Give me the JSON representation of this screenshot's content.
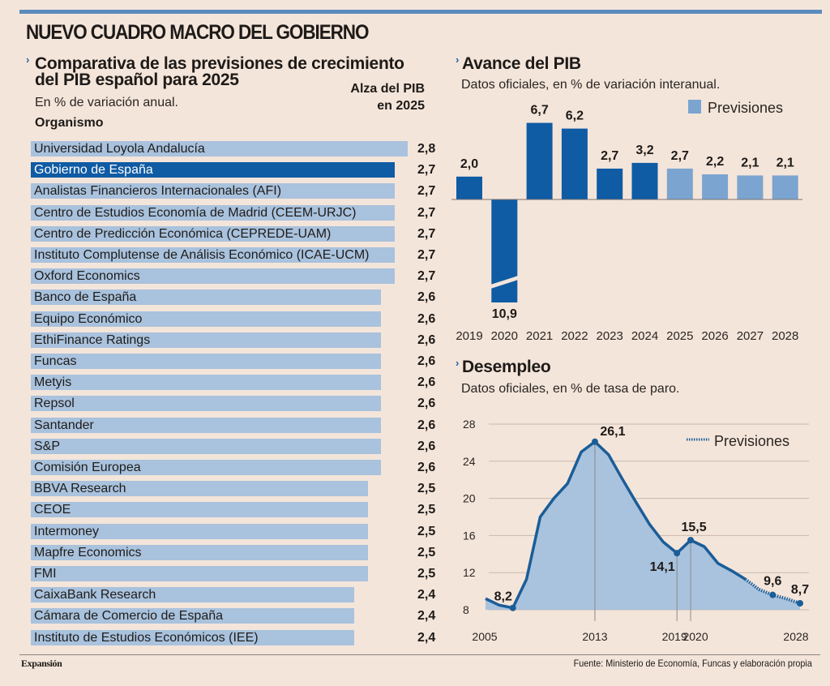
{
  "header": {
    "title": "NUEVO CUADRO MACRO DEL GOBIERNO"
  },
  "colors": {
    "accent": "#5b8bbd",
    "official_bar": "#0f5ba4",
    "forecast_bar": "#7ba4d1",
    "list_bar": "#a9c2dd",
    "area_fill": "#a9c2dd",
    "line": "#1a5d98",
    "background": "#f4e5da"
  },
  "left": {
    "title_line1": "Comparativa de las previsiones de crecimiento",
    "title_line2": "del PIB español para 2025",
    "subtitle": "En % de variación anual.",
    "col_org": "Organismo",
    "col_val_line1": "Alza del PIB",
    "col_val_line2": "en 2025"
  },
  "pib": {
    "title": "Avance del PIB",
    "subtitle": "Datos oficiales, en % de variación interanual.",
    "legend": "Previsiones"
  },
  "paro": {
    "title": "Desempleo",
    "subtitle": "Datos oficiales, en % de tasa de paro.",
    "legend": "Previsiones"
  },
  "footer": {
    "brand": "Expansión",
    "source": "Fuente:  Ministerio de Economía, Funcas y elaboración propia"
  },
  "chart_data": [
    {
      "type": "bar",
      "orientation": "horizontal",
      "title": "Comparativa de las previsiones de crecimiento del PIB español para 2025",
      "subtitle": "En % de variación anual.",
      "xlabel": "Alza del PIB en 2025",
      "ylabel": "Organismo",
      "highlight": "Gobierno de España",
      "categories": [
        "Universidad Loyola Andalucía",
        "Gobierno de España",
        "Analistas Financieros Internacionales (AFI)",
        "Centro de Estudios Economía de Madrid (CEEM-URJC)",
        "Centro de Predicción Económica (CEPREDE-UAM)",
        "Instituto Complutense de Análisis Económico (ICAE-UCM)",
        "Oxford Economics",
        "Banco de España",
        "Equipo Económico",
        "EthiFinance Ratings",
        "Funcas",
        "Metyis",
        "Repsol",
        "Santander",
        "S&P",
        "Comisión Europea",
        "BBVA Research",
        "CEOE",
        "Intermoney",
        "Mapfre Economics",
        "FMI",
        "CaixaBank Research",
        "Cámara de Comercio de España",
        "Instituto de Estudios Económicos (IEE)"
      ],
      "values": [
        2.8,
        2.7,
        2.7,
        2.7,
        2.7,
        2.7,
        2.7,
        2.6,
        2.6,
        2.6,
        2.6,
        2.6,
        2.6,
        2.6,
        2.6,
        2.6,
        2.5,
        2.5,
        2.5,
        2.5,
        2.5,
        2.4,
        2.4,
        2.4
      ],
      "value_labels": [
        "2,8",
        "2,7",
        "2,7",
        "2,7",
        "2,7",
        "2,7",
        "2,7",
        "2,6",
        "2,6",
        "2,6",
        "2,6",
        "2,6",
        "2,6",
        "2,6",
        "2,6",
        "2,6",
        "2,5",
        "2,5",
        "2,5",
        "2,5",
        "2,5",
        "2,4",
        "2,4",
        "2,4"
      ]
    },
    {
      "type": "bar",
      "title": "Avance del PIB",
      "subtitle": "Datos oficiales, en % de variación interanual.",
      "categories": [
        "2019",
        "2020",
        "2021",
        "2022",
        "2023",
        "2024",
        "2025",
        "2026",
        "2027",
        "2028"
      ],
      "values": [
        2.0,
        -10.9,
        6.7,
        6.2,
        2.7,
        3.2,
        2.7,
        2.2,
        2.1,
        2.1
      ],
      "value_labels": [
        "2,0",
        "10,9",
        "6,7",
        "6,2",
        "2,7",
        "3,2",
        "2,7",
        "2,2",
        "2,1",
        "2,1"
      ],
      "forecast": [
        false,
        false,
        false,
        false,
        false,
        false,
        true,
        true,
        true,
        true
      ],
      "axis_break": "2020",
      "legend": [
        "Previsiones"
      ],
      "legend_position": "top-right"
    },
    {
      "type": "area",
      "title": "Desempleo",
      "subtitle": "Datos oficiales, en % de tasa de paro.",
      "x": [
        2005,
        2006,
        2007,
        2008,
        2009,
        2010,
        2011,
        2012,
        2013,
        2014,
        2015,
        2016,
        2017,
        2018,
        2019,
        2020,
        2021,
        2022,
        2023,
        2024,
        2025,
        2026,
        2027,
        2028
      ],
      "y": [
        9.2,
        8.5,
        8.2,
        11.3,
        18.0,
        20.0,
        21.6,
        25.0,
        26.1,
        24.7,
        22.1,
        19.6,
        17.2,
        15.3,
        14.1,
        15.5,
        14.8,
        13.0,
        12.2,
        11.3,
        10.2,
        9.6,
        9.2,
        8.7
      ],
      "forecast_from": 2025,
      "labeled_points": [
        {
          "x": 2007,
          "y": 8.2,
          "label": "8,2"
        },
        {
          "x": 2013,
          "y": 26.1,
          "label": "26,1"
        },
        {
          "x": 2019,
          "y": 14.1,
          "label": "14,1"
        },
        {
          "x": 2020,
          "y": 15.5,
          "label": "15,5"
        },
        {
          "x": 2026,
          "y": 9.6,
          "label": "9,6"
        },
        {
          "x": 2028,
          "y": 8.7,
          "label": "8,7"
        }
      ],
      "xticks": [
        "2005",
        "2013",
        "2019",
        "2020",
        "2028"
      ],
      "yticks": [
        "8",
        "12",
        "16",
        "20",
        "24",
        "28"
      ],
      "ylim": [
        8,
        28
      ],
      "grid": true,
      "legend": [
        "Previsiones"
      ],
      "legend_position": "top-right"
    }
  ]
}
